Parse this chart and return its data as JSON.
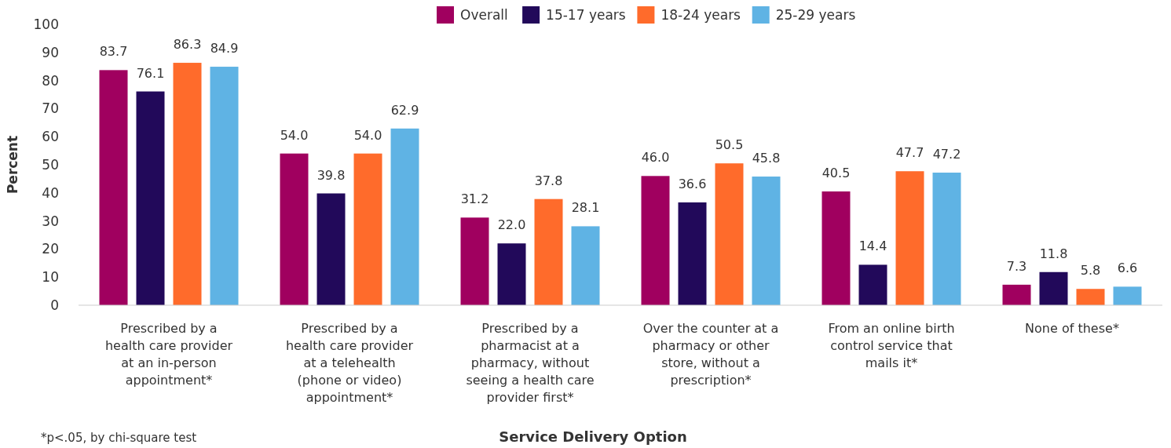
{
  "chart_data": {
    "type": "bar",
    "xlabel": "Service Delivery Option",
    "ylabel": "Percent",
    "categories": [
      "Prescribed by a health care provider at an in-person appointment*",
      "Prescribed by a health care provider at a telehealth (phone or video) appointment*",
      "Prescribed by a pharmacist at a pharmacy, without seeing a health care provider first*",
      "Over the counter at a pharmacy or other store, without a prescription*",
      "From an online birth control service that mails it*",
      "None of these*"
    ],
    "series": [
      {
        "name": "Overall",
        "color": "#a0005f",
        "values": [
          83.7,
          54.0,
          31.2,
          46.0,
          40.5,
          7.3
        ],
        "value_labels": [
          "83.7",
          "54.0",
          "31.2",
          "46.0",
          "40.5",
          "7.3"
        ]
      },
      {
        "name": "15-17 years",
        "color": "#22095a",
        "values": [
          76.1,
          39.8,
          22.0,
          36.6,
          14.4,
          11.8
        ],
        "value_labels": [
          "76.1",
          "39.8",
          "22.0",
          "36.6",
          "14.4",
          "11.8"
        ]
      },
      {
        "name": "18-24 years",
        "color": "#ff6b2b",
        "values": [
          86.3,
          54.0,
          37.8,
          50.5,
          47.7,
          5.8
        ],
        "value_labels": [
          "86.3",
          "54.0",
          "37.8",
          "50.5",
          "47.7",
          "5.8"
        ]
      },
      {
        "name": "25-29 years",
        "color": "#5fb3e4",
        "values": [
          84.9,
          62.9,
          28.1,
          45.8,
          47.2,
          6.6
        ],
        "value_labels": [
          "84.9",
          "62.9",
          "28.1",
          "45.8",
          "47.2",
          "6.6"
        ]
      }
    ],
    "ylim": [
      0,
      100
    ],
    "yticks": [
      0,
      10,
      20,
      30,
      40,
      50,
      60,
      70,
      80,
      90,
      100
    ],
    "legend": "top",
    "grid": false,
    "annotations": [
      "*p<.05, by chi-square test"
    ]
  }
}
